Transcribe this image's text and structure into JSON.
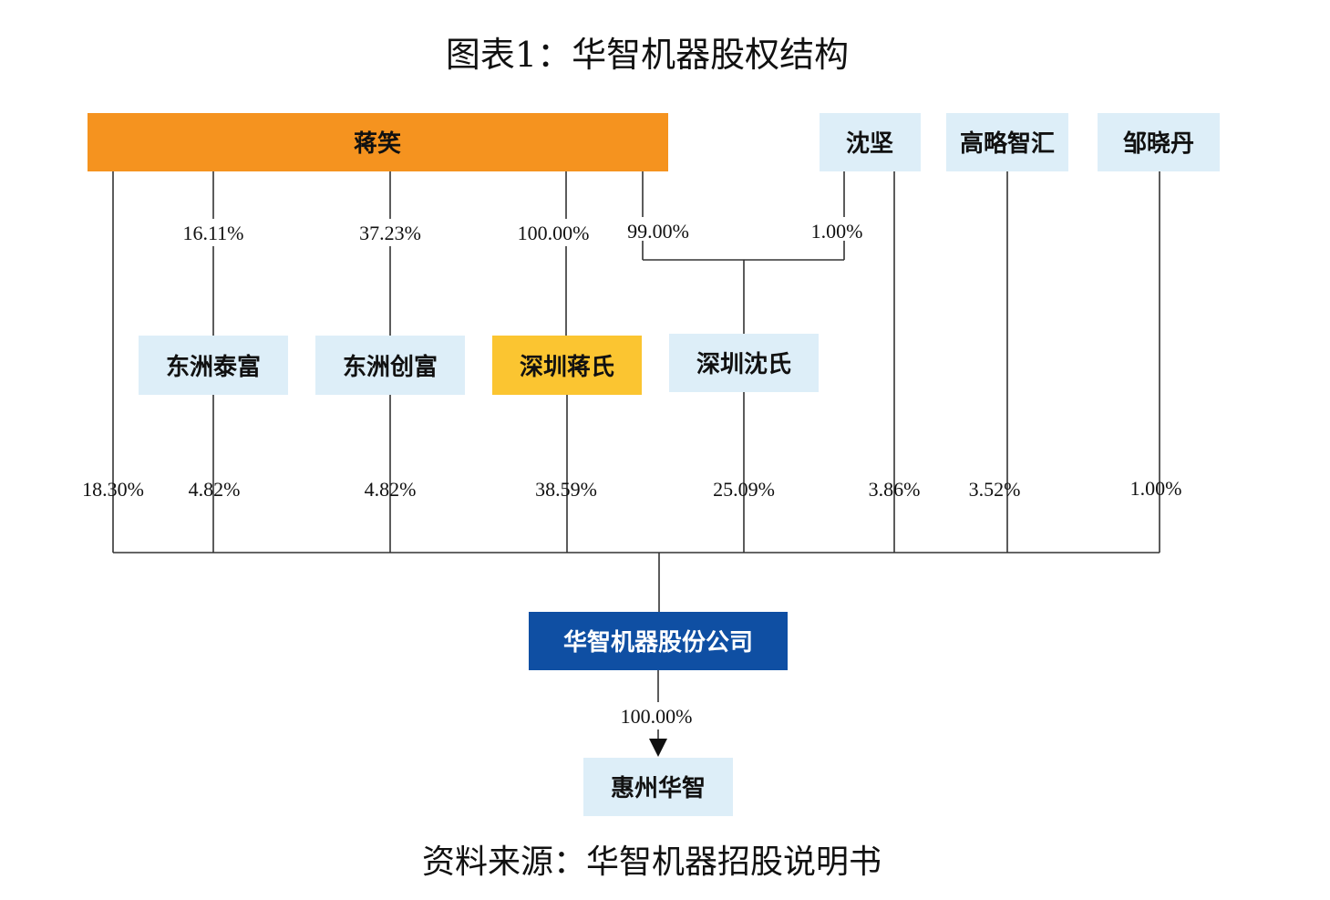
{
  "title": "图表1：华智机器股权结构",
  "source": "资料来源：华智机器招股说明书",
  "colors": {
    "orange": "#f5931f",
    "yellow": "#fbc531",
    "light_blue": "#ddeef8",
    "dark_blue": "#0f4fa3",
    "line": "#333333"
  },
  "nodes": {
    "jiang_xiao": "蒋笑",
    "shen_jian": "沈坚",
    "gao_lue_zhi_hui": "高略智汇",
    "zou_xiao_dan": "邹晓丹",
    "dongzhou_taifu": "东洲泰富",
    "dongzhou_chuangfu": "东洲创富",
    "shenzhen_jiangshi": "深圳蒋氏",
    "shenzhen_shenshi": "深圳沈氏",
    "huazhi_company": "华智机器股份公司",
    "huizhou_huazhi": "惠州华智"
  },
  "edges": {
    "jiang_to_taifu": "16.11%",
    "jiang_to_chuangfu": "37.23%",
    "jiang_to_jiangshi": "100.00%",
    "jiang_to_shenshi": "99.00%",
    "shen_to_shenshi": "1.00%",
    "jiang_direct": "18.30%",
    "taifu_to_company": "4.82%",
    "chuangfu_to_company": "4.82%",
    "jiangshi_to_company": "38.59%",
    "shenshi_to_company": "25.09%",
    "shen_direct": "3.86%",
    "gaolue_to_company": "3.52%",
    "zou_to_company": "1.00%",
    "company_to_huizhou": "100.00%"
  }
}
